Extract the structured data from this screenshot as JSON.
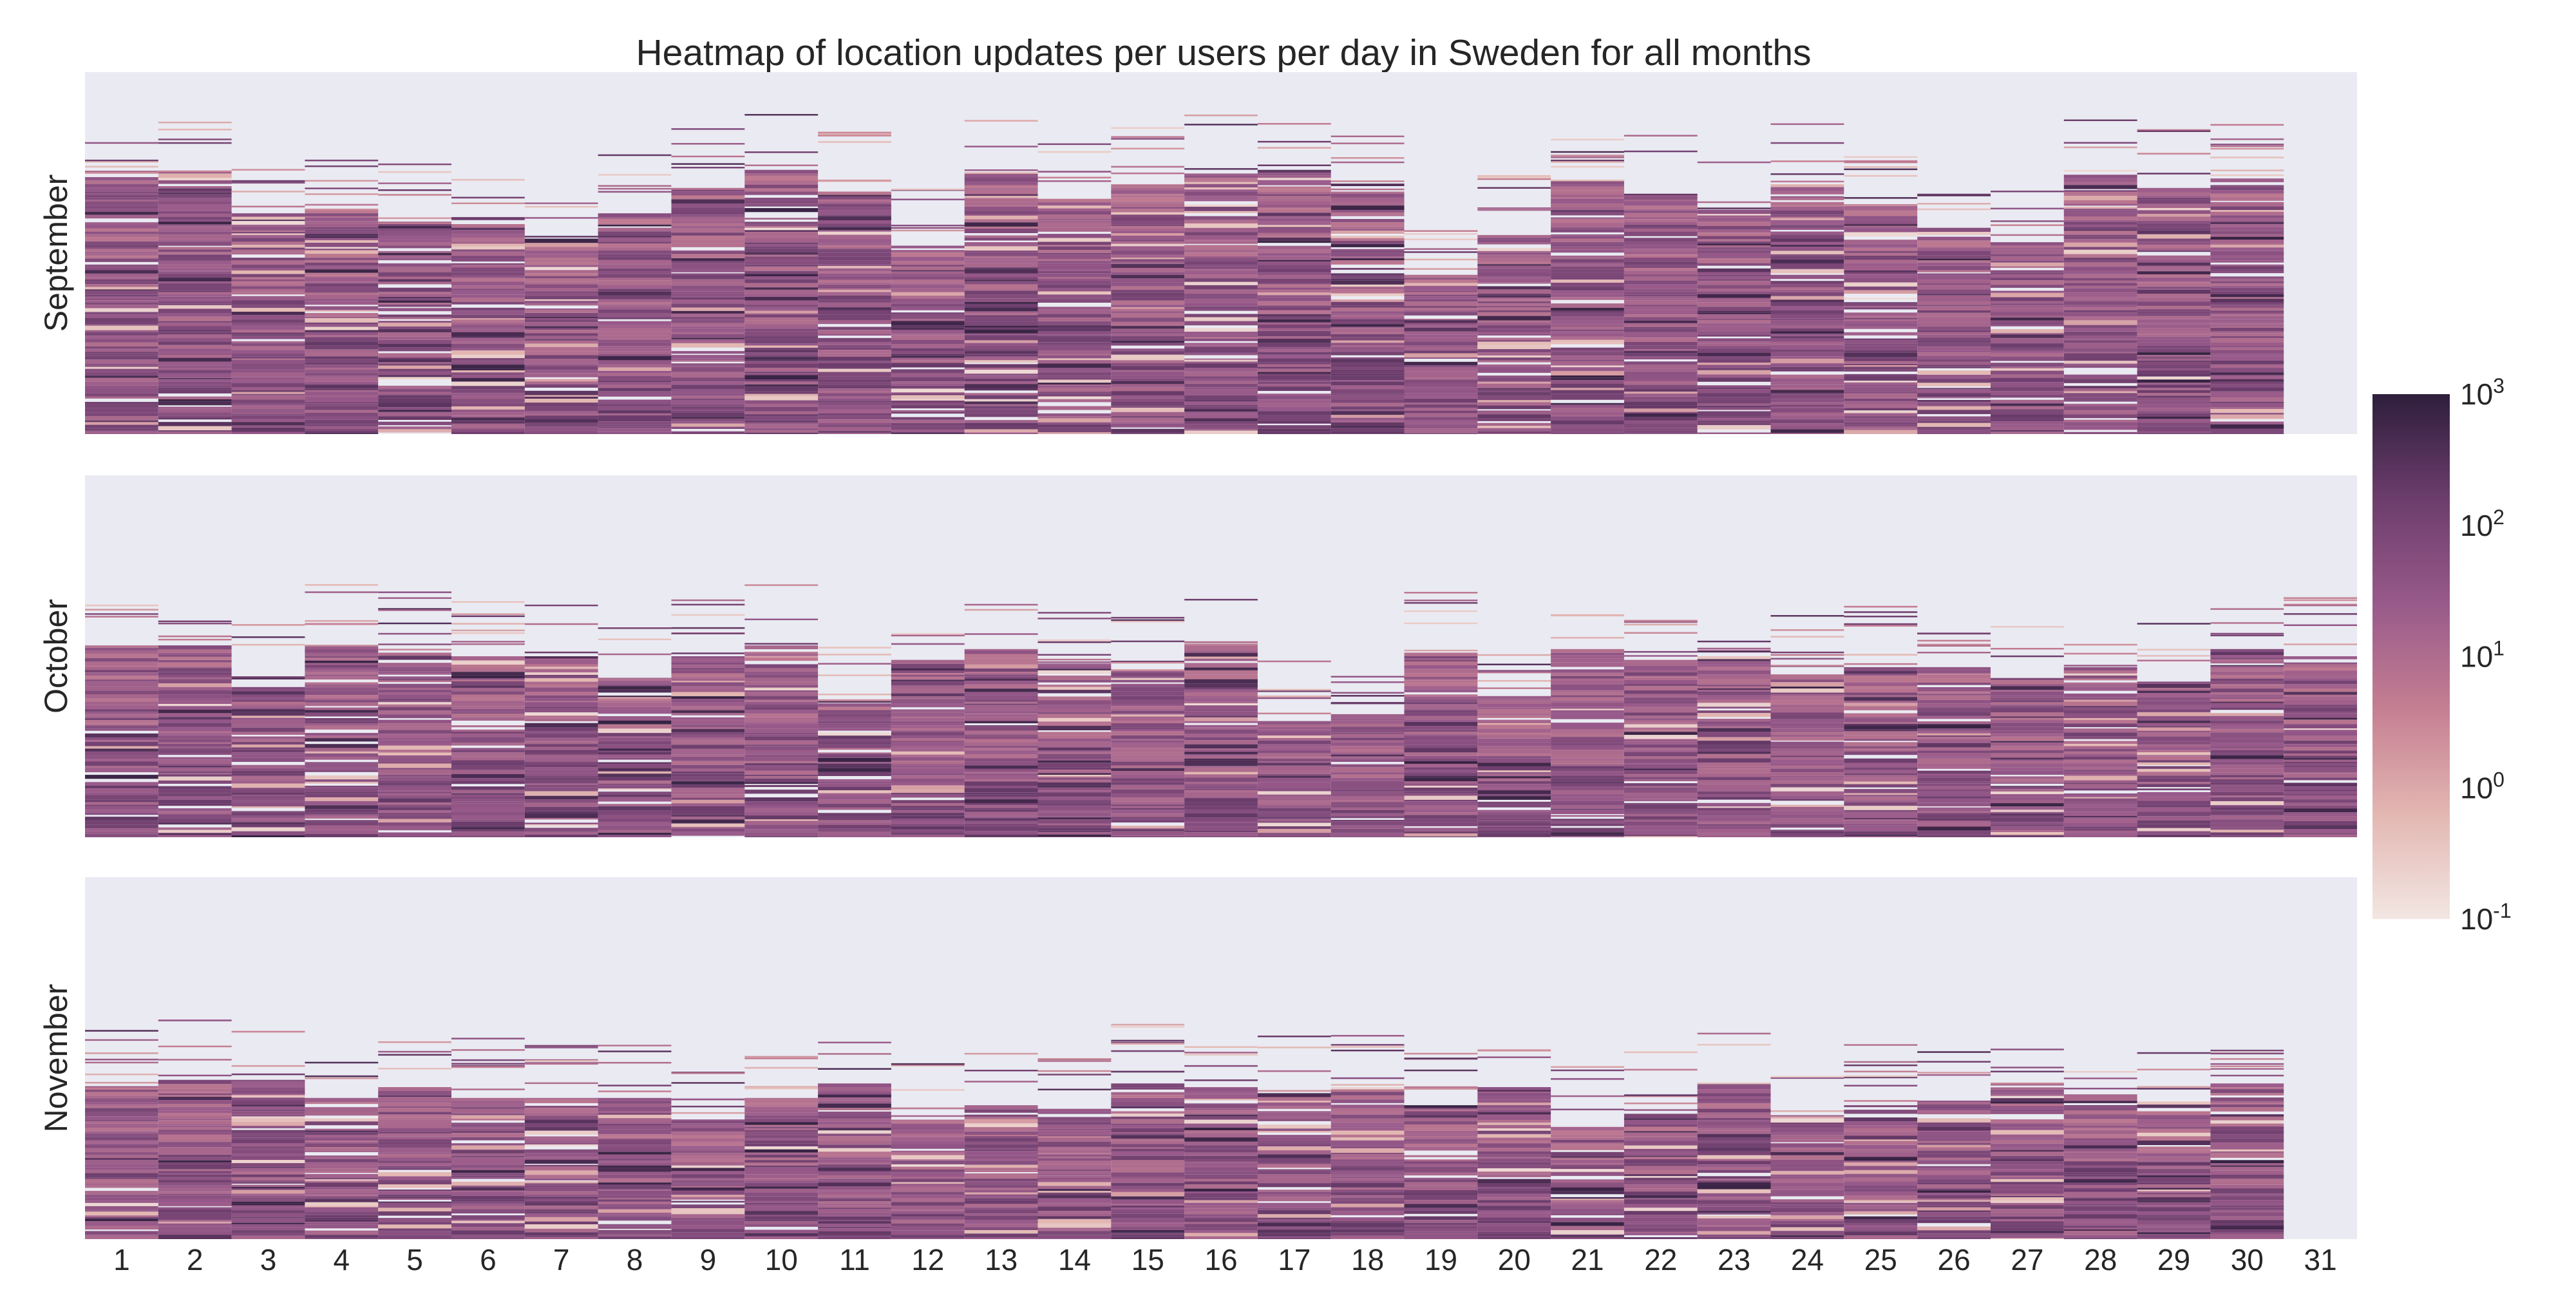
{
  "chart_data": {
    "type": "heatmap",
    "title": "Heatmap of location updates per users per day in Sweden for all months",
    "x_categories": [
      "1",
      "2",
      "3",
      "4",
      "5",
      "6",
      "7",
      "8",
      "9",
      "10",
      "11",
      "12",
      "13",
      "14",
      "15",
      "16",
      "17",
      "18",
      "19",
      "20",
      "21",
      "22",
      "23",
      "24",
      "25",
      "26",
      "27",
      "28",
      "29",
      "30",
      "31"
    ],
    "panels": [
      {
        "ylabel": "September",
        "days_shown": 30,
        "filled_fraction_by_day": [
          0.71,
          0.72,
          0.61,
          0.62,
          0.58,
          0.58,
          0.54,
          0.61,
          0.68,
          0.73,
          0.67,
          0.52,
          0.72,
          0.65,
          0.69,
          0.72,
          0.73,
          0.67,
          0.44,
          0.55,
          0.7,
          0.66,
          0.62,
          0.69,
          0.63,
          0.57,
          0.53,
          0.73,
          0.68,
          0.71
        ]
      },
      {
        "ylabel": "October",
        "days_shown": 31,
        "filled_fraction_by_day": [
          0.53,
          0.53,
          0.43,
          0.53,
          0.51,
          0.5,
          0.5,
          0.45,
          0.5,
          0.53,
          0.37,
          0.49,
          0.52,
          0.48,
          0.46,
          0.53,
          0.33,
          0.34,
          0.51,
          0.39,
          0.52,
          0.49,
          0.5,
          0.45,
          0.47,
          0.47,
          0.44,
          0.47,
          0.43,
          0.52,
          0.5
        ]
      },
      {
        "ylabel": "November",
        "days_shown": 30,
        "filled_fraction_by_day": [
          0.42,
          0.44,
          0.44,
          0.39,
          0.42,
          0.39,
          0.39,
          0.39,
          0.33,
          0.39,
          0.43,
          0.33,
          0.37,
          0.36,
          0.43,
          0.42,
          0.41,
          0.42,
          0.37,
          0.42,
          0.31,
          0.35,
          0.43,
          0.35,
          0.37,
          0.38,
          0.43,
          0.4,
          0.38,
          0.43
        ]
      }
    ],
    "colorbar": {
      "scale": "log",
      "range": [
        0.1,
        1000
      ],
      "ticks": [
        {
          "base": "10",
          "exp": "3",
          "value": 1000
        },
        {
          "base": "10",
          "exp": "2",
          "value": 100
        },
        {
          "base": "10",
          "exp": "1",
          "value": 10
        },
        {
          "base": "10",
          "exp": "0",
          "value": 1
        },
        {
          "base": "10",
          "exp": "-1",
          "value": 0.1
        }
      ],
      "colormap": [
        "#f2e6e2",
        "#e3b7b2",
        "#c57f92",
        "#985a8a",
        "#6c3d6c",
        "#2e1e3c"
      ]
    },
    "background_color": "#eaeaf2",
    "grid": false
  }
}
